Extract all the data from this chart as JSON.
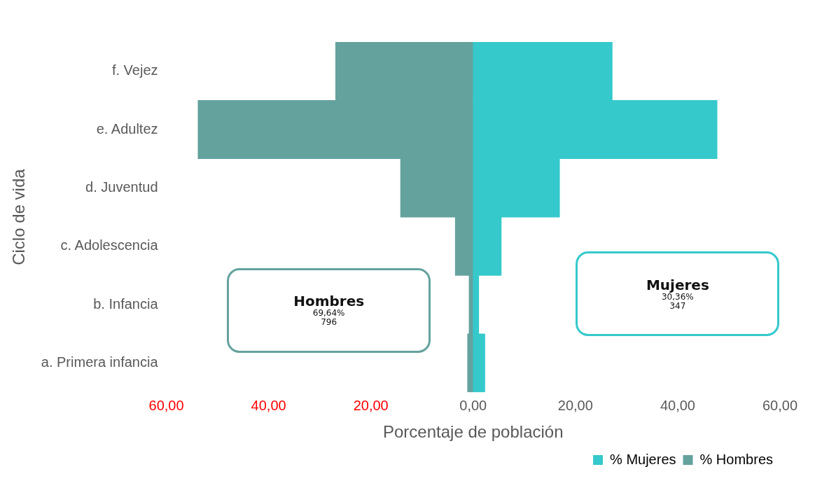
{
  "chart_data": {
    "type": "bar",
    "orientation": "horizontal",
    "stacked": true,
    "categories": [
      "f. Vejez",
      "e. Adultez",
      "d. Juventud",
      "c. Adolescencia",
      "b. Infancia",
      "a. Primera infancia"
    ],
    "series": [
      {
        "name": "% Mujeres",
        "color": "#35c9cc",
        "values": [
          27.2,
          47.7,
          16.9,
          5.5,
          1.1,
          2.3
        ]
      },
      {
        "name": "% Hombres",
        "color": "#64a29e",
        "values": [
          -26.9,
          -53.8,
          -14.2,
          -3.5,
          -0.8,
          -1.1
        ]
      }
    ],
    "xlim": [
      -60,
      60
    ],
    "xticks": [
      {
        "value": -60,
        "label": "60,00"
      },
      {
        "value": -40,
        "label": "40,00"
      },
      {
        "value": -20,
        "label": "20,00"
      },
      {
        "value": 0,
        "label": "0,00"
      },
      {
        "value": 20,
        "label": "20,00"
      },
      {
        "value": 40,
        "label": "40,00"
      },
      {
        "value": 60,
        "label": "60,00"
      }
    ],
    "xlabel": "Porcentaje de población",
    "ylabel": "Ciclo de vida",
    "grid": false,
    "legend": "bottom right",
    "annotations": [
      "Hombres\n69,64%\n796",
      "Mujeres\n30,36%\n347"
    ]
  }
}
